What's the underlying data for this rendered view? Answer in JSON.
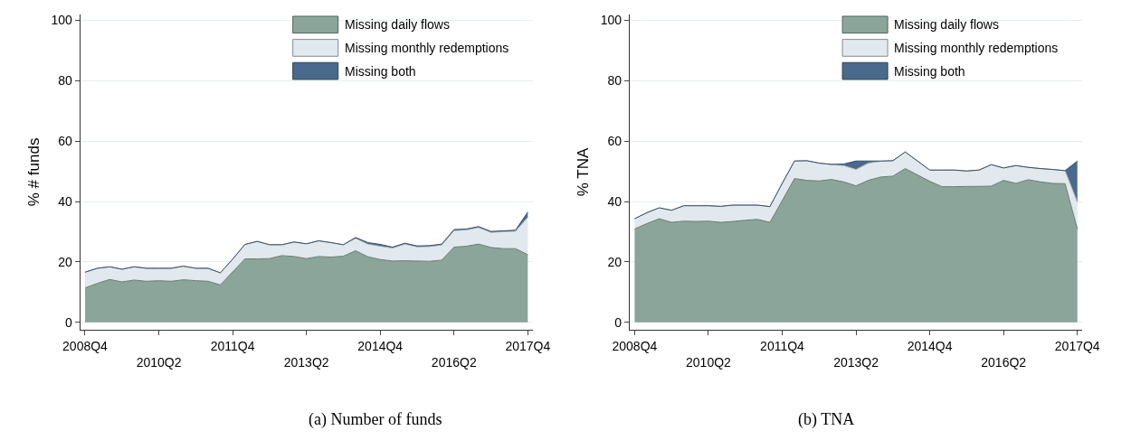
{
  "chart_data": [
    {
      "type": "area",
      "stacked": true,
      "ylabel": "% # funds",
      "annotations": [
        "(a) Number of funds"
      ],
      "categories": [
        "2008Q4",
        null,
        null,
        null,
        null,
        null,
        "2010Q2",
        null,
        null,
        null,
        null,
        null,
        "2011Q4",
        null,
        null,
        null,
        null,
        null,
        "2013Q2",
        null,
        null,
        null,
        null,
        null,
        "2014Q4",
        null,
        null,
        null,
        null,
        null,
        "2016Q2",
        null,
        null,
        null,
        null,
        null,
        "2017Q4"
      ],
      "ylim": [
        -2.5,
        102
      ],
      "yticks": [
        0,
        20,
        40,
        60,
        80,
        100
      ],
      "grid": "y",
      "legend": "top right",
      "series": [
        {
          "name": "Missing daily flows",
          "color": "#8ba59a",
          "values": [
            11.4,
            12.9,
            14.2,
            13.4,
            14.0,
            13.6,
            13.8,
            13.6,
            14.1,
            13.8,
            13.6,
            12.4,
            16.7,
            21.0,
            21.0,
            21.1,
            22.1,
            21.8,
            21.1,
            21.8,
            21.6,
            21.9,
            23.7,
            21.7,
            20.8,
            20.3,
            20.4,
            20.3,
            20.2,
            20.6,
            24.9,
            25.2,
            25.9,
            24.8,
            24.4,
            24.4,
            22.4
          ]
        },
        {
          "name": "Missing monthly redemptions",
          "color": "#e2e9ee",
          "values": [
            5.2,
            5.0,
            4.2,
            4.2,
            4.4,
            4.3,
            4.1,
            4.3,
            4.5,
            4.1,
            4.3,
            4.0,
            4.2,
            4.8,
            5.8,
            4.6,
            3.6,
            4.8,
            4.9,
            5.2,
            4.8,
            3.8,
            4.1,
            4.2,
            4.4,
            4.3,
            5.5,
            4.7,
            4.9,
            5.0,
            5.5,
            5.4,
            5.5,
            5.0,
            5.6,
            5.8,
            12.4
          ]
        },
        {
          "name": "Missing both",
          "color": "#4a6a8d",
          "values": [
            0,
            0,
            0,
            0,
            0,
            0,
            0,
            0,
            0,
            0,
            0,
            0,
            0,
            0,
            0,
            0,
            0,
            0,
            0,
            0,
            0,
            0,
            0.3,
            0.5,
            0.6,
            0.3,
            0.3,
            0.3,
            0.3,
            0.3,
            0.3,
            0.3,
            0.3,
            0.3,
            0.3,
            0.3,
            1.7
          ]
        }
      ]
    },
    {
      "type": "area",
      "stacked": true,
      "ylabel": "% TNA",
      "annotations": [
        "(b) TNA"
      ],
      "categories": [
        "2008Q4",
        null,
        null,
        null,
        null,
        null,
        "2010Q2",
        null,
        null,
        null,
        null,
        null,
        "2011Q4",
        null,
        null,
        null,
        null,
        null,
        "2013Q2",
        null,
        null,
        null,
        null,
        null,
        "2014Q4",
        null,
        null,
        null,
        null,
        null,
        "2016Q2",
        null,
        null,
        null,
        null,
        null,
        "2017Q4"
      ],
      "ylim": [
        -2.5,
        102
      ],
      "yticks": [
        0,
        20,
        40,
        60,
        80,
        100
      ],
      "grid": "y",
      "legend": "top right",
      "series": [
        {
          "name": "Missing daily flows",
          "color": "#8ba59a",
          "values": [
            30.9,
            32.7,
            34.3,
            33.1,
            33.5,
            33.4,
            33.5,
            33.1,
            33.4,
            33.8,
            34.1,
            33.1,
            40.3,
            47.6,
            47.0,
            46.8,
            47.3,
            46.5,
            45.2,
            47.0,
            48.1,
            48.4,
            50.9,
            48.8,
            46.7,
            44.9,
            44.9,
            45.0,
            45.0,
            45.1,
            47.0,
            46.0,
            47.2,
            46.5,
            46.0,
            45.9,
            30.9
          ]
        },
        {
          "name": "Missing monthly redemptions",
          "color": "#e2e9ee",
          "values": [
            3.4,
            3.6,
            3.6,
            4.0,
            5.1,
            5.2,
            5.1,
            5.3,
            5.4,
            5.0,
            4.7,
            5.2,
            5.7,
            5.8,
            6.5,
            5.9,
            4.9,
            5.4,
            5.4,
            5.7,
            5.2,
            5.1,
            5.5,
            4.6,
            3.7,
            5.5,
            5.5,
            5.1,
            5.4,
            7.1,
            4.1,
            5.9,
            4.1,
            4.4,
            4.6,
            4.3,
            8.9
          ]
        },
        {
          "name": "Missing both",
          "color": "#4a6a8d",
          "values": [
            0,
            0,
            0,
            0,
            0,
            0,
            0,
            0,
            0,
            0,
            0,
            0,
            0,
            0,
            0,
            0,
            0.1,
            0.5,
            2.8,
            0.7,
            0.1,
            0,
            0,
            0,
            0,
            0,
            0,
            0,
            0,
            0,
            0,
            0,
            0,
            0,
            0,
            0,
            13.6
          ]
        }
      ]
    }
  ]
}
